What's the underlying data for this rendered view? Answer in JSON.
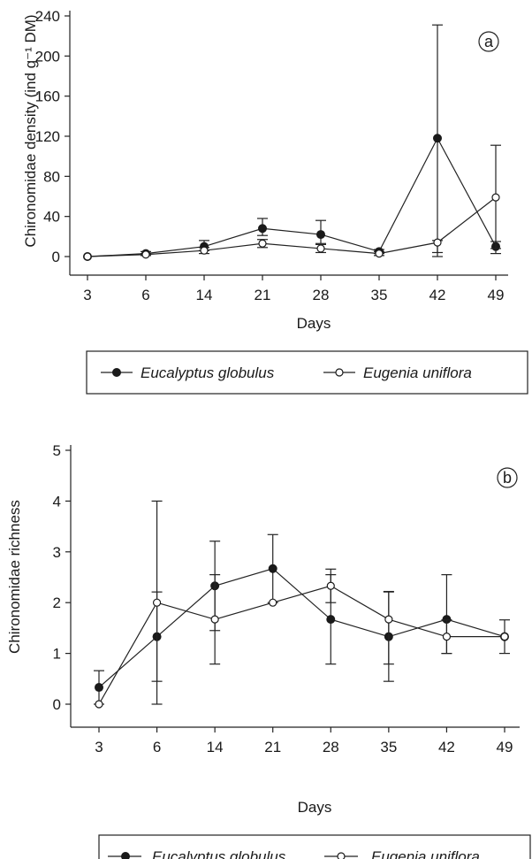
{
  "chart_data": [
    {
      "panel_label": "a",
      "type": "line",
      "xlabel": "Days",
      "ylabel": "Chironomidae density (ind g⁻¹ DM)",
      "categories": [
        "3",
        "6",
        "14",
        "21",
        "28",
        "35",
        "42",
        "49"
      ],
      "ylim": [
        0,
        260
      ],
      "yticks": [
        "0",
        "40",
        "80",
        "120",
        "160",
        "200",
        "240"
      ],
      "grid": false,
      "legend_position": "bottom",
      "series": [
        {
          "name": "Eucalyptus globulus",
          "marker": "filled-circle",
          "values": [
            0,
            3,
            10,
            28,
            22,
            5,
            118,
            10
          ],
          "err_low": [
            0,
            2,
            4,
            7,
            9,
            2,
            118,
            7
          ],
          "err_high": [
            0,
            2,
            6,
            10,
            14,
            2,
            113,
            5
          ]
        },
        {
          "name": "Eugenia uniflora",
          "marker": "open-circle",
          "values": [
            0,
            2,
            6,
            13,
            8,
            3,
            14,
            59
          ],
          "err_low": [
            0,
            1,
            3,
            4,
            4,
            2,
            10,
            51
          ],
          "err_high": [
            0,
            1,
            3,
            4,
            4,
            2,
            2,
            52
          ]
        }
      ]
    },
    {
      "panel_label": "b",
      "type": "line",
      "xlabel": "Days",
      "ylabel": "Chironomidae richness",
      "categories": [
        "3",
        "6",
        "14",
        "21",
        "28",
        "35",
        "42",
        "49"
      ],
      "ylim": [
        -0.4,
        5
      ],
      "yticks": [
        "0",
        "1",
        "2",
        "3",
        "4",
        "5"
      ],
      "grid": false,
      "legend_position": "bottom",
      "series": [
        {
          "name": "Eucalyptus globulus",
          "marker": "filled-circle",
          "values": [
            0.33,
            1.33,
            2.33,
            2.67,
            1.67,
            1.33,
            1.67,
            1.33
          ],
          "err_low": [
            0.33,
            1.33,
            0.88,
            0.67,
            0.88,
            0.88,
            0.67,
            0.33
          ],
          "err_high": [
            0.33,
            0.88,
            0.88,
            0.67,
            0.88,
            0.88,
            0.88,
            0.33
          ]
        },
        {
          "name": "Eugenia uniflora",
          "marker": "open-circle",
          "values": [
            0,
            2,
            1.67,
            2,
            2.33,
            1.67,
            1.33,
            1.33
          ],
          "err_low": [
            0,
            1.55,
            0.88,
            0,
            0.33,
            0.88,
            0.33,
            0
          ],
          "err_high": [
            0,
            2,
            0.88,
            0,
            0.33,
            0.55,
            0.33,
            0
          ]
        }
      ]
    }
  ]
}
